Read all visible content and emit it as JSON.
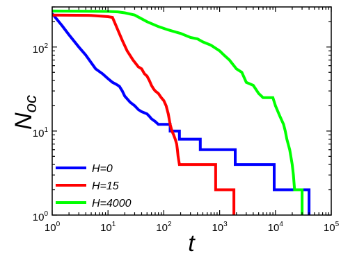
{
  "chart_data": {
    "type": "line",
    "xscale": "log",
    "yscale": "log",
    "xlim": [
      1,
      100000
    ],
    "ylim": [
      1,
      300
    ],
    "grid": false,
    "legend_position": "bottom-left",
    "x_ticks": [
      {
        "base": "10",
        "exp": "0",
        "value": 1
      },
      {
        "base": "10",
        "exp": "1",
        "value": 10
      },
      {
        "base": "10",
        "exp": "2",
        "value": 100
      },
      {
        "base": "10",
        "exp": "3",
        "value": 1000
      },
      {
        "base": "10",
        "exp": "4",
        "value": 10000
      },
      {
        "base": "10",
        "exp": "5",
        "value": 100000
      }
    ],
    "y_ticks": [
      {
        "base": "10",
        "exp": "0",
        "value": 1
      },
      {
        "base": "10",
        "exp": "1",
        "value": 10
      },
      {
        "base": "10",
        "exp": "2",
        "value": 100
      }
    ],
    "xlabel": "t",
    "ylabel_main": "N",
    "ylabel_sub": "oc",
    "series": [
      {
        "name": "H=0",
        "color": "#0000ff",
        "points": [
          [
            1,
            250
          ],
          [
            1.5,
            180
          ],
          [
            2,
            140
          ],
          [
            3,
            100
          ],
          [
            4,
            80
          ],
          [
            5,
            65
          ],
          [
            6,
            55
          ],
          [
            8,
            48
          ],
          [
            10,
            42
          ],
          [
            12,
            38
          ],
          [
            14,
            36
          ],
          [
            16,
            34
          ],
          [
            18,
            30
          ],
          [
            20,
            26
          ],
          [
            25,
            22
          ],
          [
            30,
            20
          ],
          [
            35,
            18
          ],
          [
            40,
            17
          ],
          [
            50,
            16
          ],
          [
            55,
            15
          ],
          [
            60,
            14
          ],
          [
            70,
            13
          ],
          [
            80,
            12
          ],
          [
            130,
            12
          ],
          [
            130,
            10
          ],
          [
            190,
            10
          ],
          [
            190,
            8
          ],
          [
            450,
            8
          ],
          [
            450,
            6
          ],
          [
            1900,
            6
          ],
          [
            1900,
            4
          ],
          [
            9500,
            4
          ],
          [
            9500,
            2
          ],
          [
            40000,
            2
          ],
          [
            40000,
            1
          ]
        ]
      },
      {
        "name": "H=15",
        "color": "#ff0000",
        "points": [
          [
            1,
            240
          ],
          [
            5,
            238
          ],
          [
            10,
            230
          ],
          [
            12,
            225
          ],
          [
            13,
            200
          ],
          [
            15,
            160
          ],
          [
            18,
            120
          ],
          [
            22,
            90
          ],
          [
            28,
            70
          ],
          [
            35,
            58
          ],
          [
            40,
            55
          ],
          [
            45,
            48
          ],
          [
            50,
            45
          ],
          [
            55,
            40
          ],
          [
            60,
            35
          ],
          [
            65,
            32
          ],
          [
            70,
            30
          ],
          [
            80,
            28
          ],
          [
            90,
            25
          ],
          [
            100,
            23
          ],
          [
            110,
            20
          ],
          [
            120,
            16
          ],
          [
            130,
            12
          ],
          [
            140,
            10
          ],
          [
            150,
            9
          ],
          [
            160,
            8
          ],
          [
            170,
            7
          ],
          [
            175,
            6
          ],
          [
            180,
            5
          ],
          [
            190,
            4
          ],
          [
            850,
            4
          ],
          [
            850,
            2
          ],
          [
            1800,
            2
          ],
          [
            1800,
            1
          ]
        ]
      },
      {
        "name": "H=4000",
        "color": "#00ff00",
        "points": [
          [
            1,
            268
          ],
          [
            10,
            265
          ],
          [
            15,
            262
          ],
          [
            20,
            255
          ],
          [
            30,
            240
          ],
          [
            50,
            200
          ],
          [
            80,
            175
          ],
          [
            120,
            160
          ],
          [
            200,
            145
          ],
          [
            300,
            130
          ],
          [
            400,
            125
          ],
          [
            500,
            115
          ],
          [
            700,
            105
          ],
          [
            1000,
            90
          ],
          [
            1200,
            80
          ],
          [
            1500,
            70
          ],
          [
            2000,
            55
          ],
          [
            2500,
            50
          ],
          [
            3000,
            38
          ],
          [
            4000,
            35
          ],
          [
            5000,
            28
          ],
          [
            6000,
            25
          ],
          [
            9000,
            25
          ],
          [
            10000,
            20
          ],
          [
            12000,
            15
          ],
          [
            14000,
            12
          ],
          [
            15000,
            10
          ],
          [
            16000,
            8
          ],
          [
            18000,
            6
          ],
          [
            20000,
            4
          ],
          [
            21000,
            3
          ],
          [
            22000,
            2
          ],
          [
            30000,
            2
          ],
          [
            30000,
            1
          ]
        ]
      }
    ]
  }
}
